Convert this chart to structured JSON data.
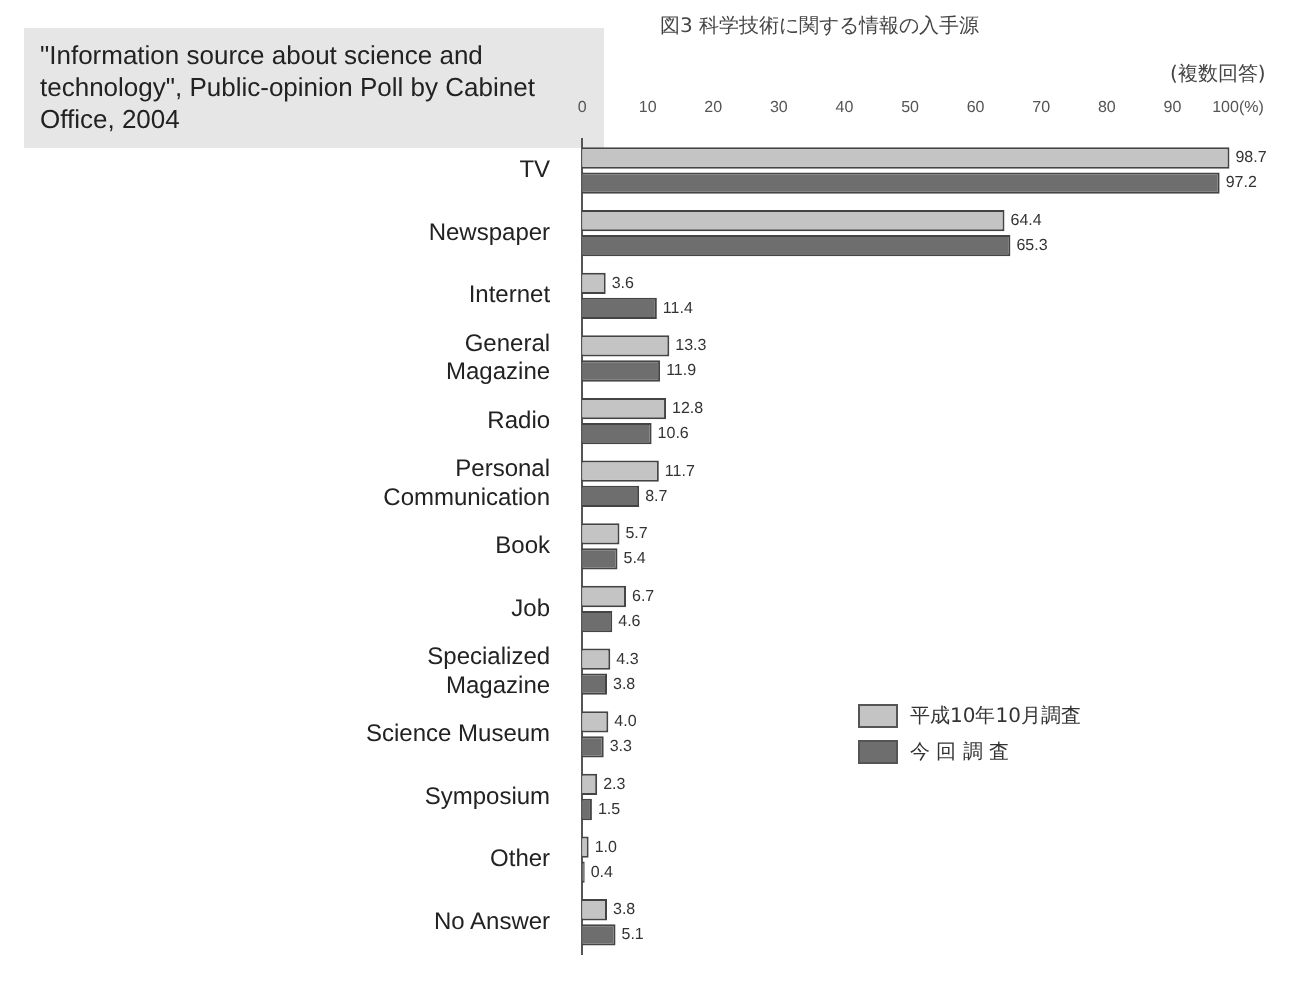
{
  "chart_data": {
    "type": "bar",
    "orientation": "horizontal",
    "title": "\"Information source about science and technology\", Public-opinion Poll by Cabinet Office, 2004",
    "subtitle": "図3 科学技術に関する情報の入手源",
    "annotations": [
      "(複数回答)"
    ],
    "categories": [
      "TV",
      "Newspaper",
      "Internet",
      "General Magazine",
      "Radio",
      "Personal Communication",
      "Book",
      "Job",
      "Specialized Magazine",
      "Science Museum",
      "Symposium",
      "Other",
      "No Answer"
    ],
    "series": [
      {
        "name": "平成10年10月調査",
        "color": "#c4c4c4",
        "values": [
          98.7,
          64.4,
          3.6,
          13.3,
          12.8,
          11.7,
          5.7,
          6.7,
          4.3,
          4.0,
          2.3,
          1.0,
          3.8
        ],
        "value_labels": [
          "98.7",
          "64.4",
          "3.6",
          "13.3",
          "12.8",
          "11.7",
          "5.7",
          "6.7",
          "4.3",
          "4.0",
          "2.3",
          "1.0",
          "3.8"
        ]
      },
      {
        "name": "今 回 調 査",
        "color": "#6e6e6e",
        "values": [
          97.2,
          65.3,
          11.4,
          11.9,
          10.6,
          8.7,
          5.4,
          4.6,
          3.8,
          3.3,
          1.5,
          0.4,
          5.1
        ],
        "value_labels": [
          "97.2",
          "65.3",
          "11.4",
          "11.9",
          "10.6",
          "8.7",
          "5.4",
          "4.6",
          "3.8",
          "3.3",
          "1.5",
          "0.4",
          "5.1"
        ]
      }
    ],
    "xlim": [
      0,
      100
    ],
    "xticks": [
      0,
      10,
      20,
      30,
      40,
      50,
      60,
      70,
      80,
      90,
      {
        "value": 100,
        "label": "100(%)"
      }
    ],
    "grid": false,
    "legend": "bottom right"
  }
}
